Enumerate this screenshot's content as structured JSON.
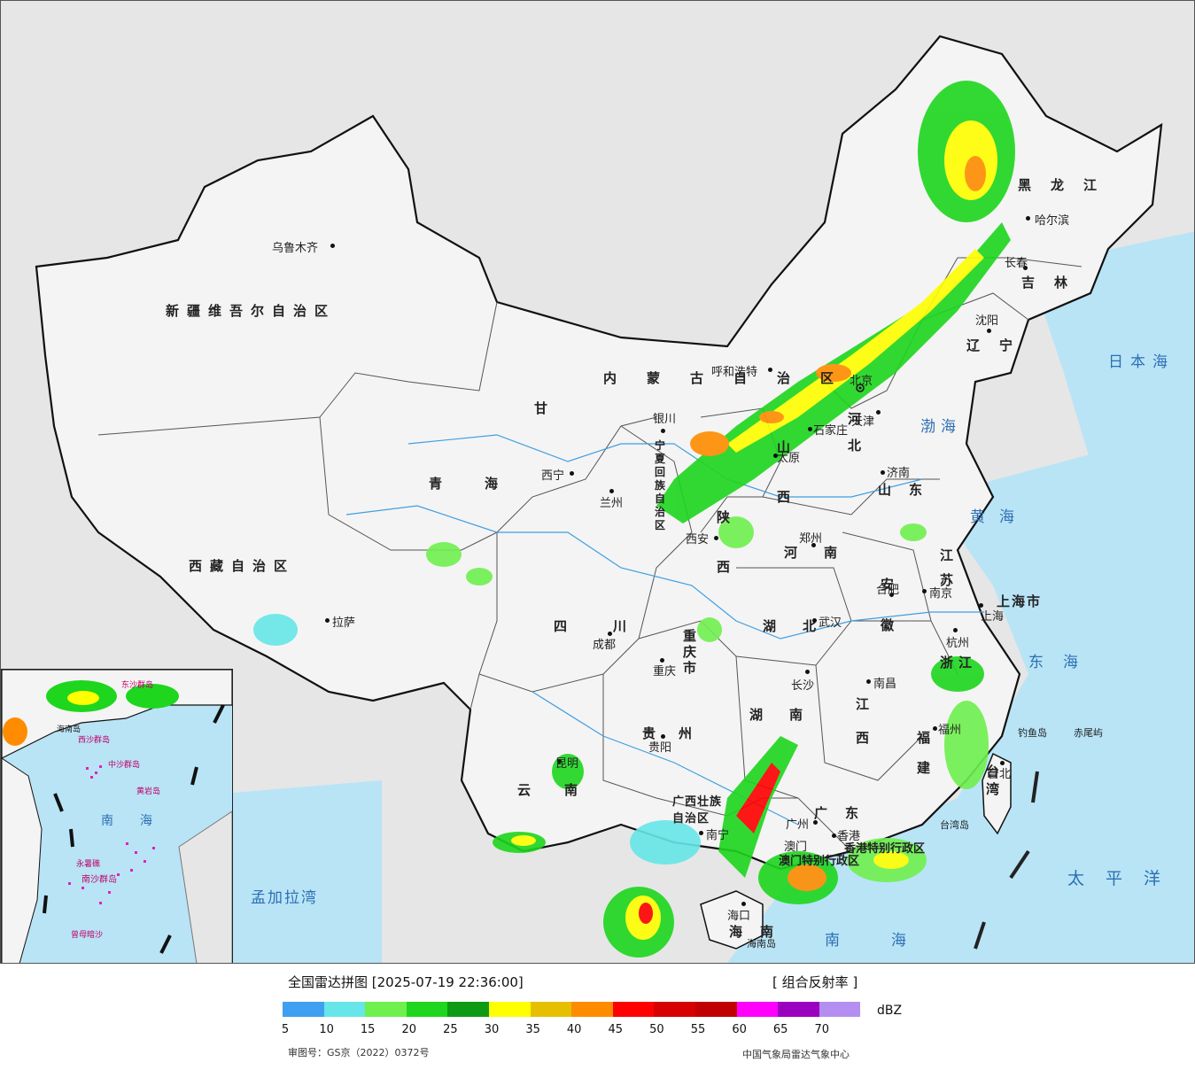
{
  "map": {
    "provinces": [
      {
        "name": "新疆维吾尔自治区"
      },
      {
        "name": "西藏自治区"
      },
      {
        "name": "青海"
      },
      {
        "name": "甘"
      },
      {
        "name": "四川"
      },
      {
        "name": "云南"
      },
      {
        "name": "贵州"
      },
      {
        "name": "广西壮族自治区"
      },
      {
        "name": "广东"
      },
      {
        "name": "海南"
      },
      {
        "name": "湖南"
      },
      {
        "name": "湖北"
      },
      {
        "name": "河南"
      },
      {
        "name": "陕西"
      },
      {
        "name": "山西"
      },
      {
        "name": "河北"
      },
      {
        "name": "山东"
      },
      {
        "name": "江苏"
      },
      {
        "name": "安徽"
      },
      {
        "name": "浙江"
      },
      {
        "name": "江西"
      },
      {
        "name": "福建"
      },
      {
        "name": "台湾"
      },
      {
        "name": "内蒙古自治区"
      },
      {
        "name": "黑龙江"
      },
      {
        "name": "吉林"
      },
      {
        "name": "辽宁"
      },
      {
        "name": "重庆市"
      },
      {
        "name": "上海市"
      },
      {
        "name": "香港特别行政区"
      },
      {
        "name": "澳门特别行政区"
      },
      {
        "name": "宁夏回族自治区"
      }
    ],
    "cities": [
      {
        "name": "乌鲁木齐"
      },
      {
        "name": "拉萨"
      },
      {
        "name": "西宁"
      },
      {
        "name": "兰州"
      },
      {
        "name": "银川"
      },
      {
        "name": "呼和浩特"
      },
      {
        "name": "北京"
      },
      {
        "name": "天津"
      },
      {
        "name": "石家庄"
      },
      {
        "name": "太原"
      },
      {
        "name": "济南"
      },
      {
        "name": "郑州"
      },
      {
        "name": "西安"
      },
      {
        "name": "成都"
      },
      {
        "name": "重庆"
      },
      {
        "name": "贵阳"
      },
      {
        "name": "昆明"
      },
      {
        "name": "南宁"
      },
      {
        "name": "广州"
      },
      {
        "name": "香港"
      },
      {
        "name": "澳门"
      },
      {
        "name": "海口"
      },
      {
        "name": "长沙"
      },
      {
        "name": "武汉"
      },
      {
        "name": "南昌"
      },
      {
        "name": "福州"
      },
      {
        "name": "台北"
      },
      {
        "name": "杭州"
      },
      {
        "name": "上海"
      },
      {
        "name": "南京"
      },
      {
        "name": "合肥"
      },
      {
        "name": "沈阳"
      },
      {
        "name": "长春"
      },
      {
        "name": "哈尔滨"
      }
    ],
    "seas": [
      {
        "name": "渤海"
      },
      {
        "name": "黄海"
      },
      {
        "name": "东海"
      },
      {
        "name": "南海"
      },
      {
        "name": "日本海"
      },
      {
        "name": "太平洋"
      },
      {
        "name": "孟加拉湾"
      }
    ],
    "islands": [
      {
        "name": "钓鱼岛"
      },
      {
        "name": "赤尾屿"
      },
      {
        "name": "台湾岛"
      },
      {
        "name": "海南岛"
      }
    ],
    "inset": {
      "labels": [
        "东沙群岛",
        "西沙群岛",
        "中沙群岛",
        "黄岩岛",
        "南海",
        "永暑礁",
        "南沙群岛",
        "曾母暗沙",
        "海南岛"
      ]
    },
    "colors": {
      "land": "#f4f4f4",
      "sea": "#b8e4f6",
      "foreign": "#e6e6e6",
      "border": "#111111"
    }
  },
  "legend": {
    "title": "全国雷达拼图 [2025-07-19 22:36:00]",
    "product": "[ 组合反射率 ]",
    "unit": "dBZ",
    "bins": [
      {
        "from": 5,
        "color": "#3f9ff0"
      },
      {
        "from": 10,
        "color": "#66e6e8"
      },
      {
        "from": 15,
        "color": "#6ff04e"
      },
      {
        "from": 20,
        "color": "#1ed61e"
      },
      {
        "from": 25,
        "color": "#0e9a12"
      },
      {
        "from": 30,
        "color": "#ffff00"
      },
      {
        "from": 35,
        "color": "#e6c000"
      },
      {
        "from": 40,
        "color": "#ff8c00"
      },
      {
        "from": 45,
        "color": "#ff0000"
      },
      {
        "from": 50,
        "color": "#d60000"
      },
      {
        "from": 55,
        "color": "#c00000"
      },
      {
        "from": 60,
        "color": "#ff00ff"
      },
      {
        "from": 65,
        "color": "#9a00c0"
      },
      {
        "from": 70,
        "color": "#b48ef0"
      }
    ],
    "ticks": [
      "5",
      "10",
      "15",
      "20",
      "25",
      "30",
      "35",
      "40",
      "45",
      "50",
      "55",
      "60",
      "65",
      "70"
    ],
    "approval": "审图号：GS京（2022）0372号",
    "agency": "中国气象局雷达气象中心"
  }
}
